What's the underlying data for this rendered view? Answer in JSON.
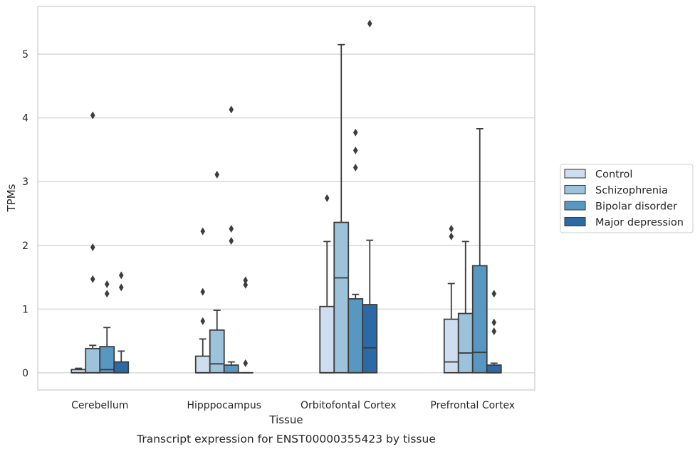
{
  "caption": "Transcript expression for ENST00000355423 by tissue",
  "colors": {
    "Control": "#cfdeee",
    "Schizophrenia": "#9cc3db",
    "Bipolar disorder": "#5997c3",
    "Major depression": "#2c6aa5",
    "edge": "#3c3c3c",
    "grid": "#cfcfcf",
    "frame": "#cccccc"
  },
  "chart_data": {
    "type": "box",
    "title": "",
    "xlabel": "Tissue",
    "ylabel": "TPMs",
    "ylim": [
      -0.27,
      5.75
    ],
    "yticks": [
      0,
      1,
      2,
      3,
      4,
      5
    ],
    "grid": true,
    "legend": {
      "placement": "right-outside",
      "entries": [
        "Control",
        "Schizophrenia",
        "Bipolar disorder",
        "Major depression"
      ]
    },
    "categories": [
      "Cerebellum",
      "Hipppocampus",
      "Orbitofontal Cortex",
      "Prefrontal Cortex"
    ],
    "series": [
      {
        "name": "Control",
        "boxes": [
          {
            "whislo": 0,
            "q1": 0,
            "med": 0,
            "q3": 0.05,
            "whishi": 0.07,
            "fliers": []
          },
          {
            "whislo": 0,
            "q1": 0,
            "med": 0,
            "q3": 0.26,
            "whishi": 0.53,
            "fliers": [
              0.81,
              1.27,
              2.22
            ]
          },
          {
            "whislo": 0,
            "q1": 0,
            "med": 0,
            "q3": 1.04,
            "whishi": 2.06,
            "fliers": [
              2.74
            ]
          },
          {
            "whislo": 0,
            "q1": 0,
            "med": 0.17,
            "q3": 0.84,
            "whishi": 1.4,
            "fliers": [
              2.14,
              2.26
            ]
          }
        ]
      },
      {
        "name": "Schizophrenia",
        "boxes": [
          {
            "whislo": 0,
            "q1": 0,
            "med": 0,
            "q3": 0.38,
            "whishi": 0.43,
            "fliers": [
              1.47,
              1.97,
              4.04
            ]
          },
          {
            "whislo": 0,
            "q1": 0,
            "med": 0.14,
            "q3": 0.67,
            "whishi": 0.98,
            "fliers": [
              3.11
            ]
          },
          {
            "whislo": 0,
            "q1": 0,
            "med": 1.49,
            "q3": 2.36,
            "whishi": 5.15,
            "fliers": []
          },
          {
            "whislo": 0,
            "q1": 0,
            "med": 0.31,
            "q3": 0.93,
            "whishi": 2.06,
            "fliers": []
          }
        ]
      },
      {
        "name": "Bipolar disorder",
        "boxes": [
          {
            "whislo": 0,
            "q1": 0,
            "med": 0.05,
            "q3": 0.41,
            "whishi": 0.71,
            "fliers": [
              1.24,
              1.39
            ]
          },
          {
            "whislo": 0,
            "q1": 0,
            "med": 0,
            "q3": 0.12,
            "whishi": 0.17,
            "fliers": [
              2.07,
              2.26,
              4.13
            ]
          },
          {
            "whislo": 0,
            "q1": 0,
            "med": 0,
            "q3": 1.16,
            "whishi": 1.23,
            "fliers": [
              3.22,
              3.49,
              3.77
            ]
          },
          {
            "whislo": 0,
            "q1": 0,
            "med": 0.32,
            "q3": 1.68,
            "whishi": 3.83,
            "fliers": []
          }
        ]
      },
      {
        "name": "Major depression",
        "boxes": [
          {
            "whislo": 0,
            "q1": 0,
            "med": 0,
            "q3": 0.17,
            "whishi": 0.34,
            "fliers": [
              1.34,
              1.53
            ]
          },
          {
            "whislo": 0,
            "q1": 0,
            "med": 0,
            "q3": 0,
            "whishi": 0,
            "fliers": [
              0.15,
              1.38,
              1.45
            ]
          },
          {
            "whislo": 0,
            "q1": 0,
            "med": 0.39,
            "q3": 1.07,
            "whishi": 2.08,
            "fliers": [
              5.48
            ]
          },
          {
            "whislo": 0,
            "q1": 0,
            "med": 0,
            "q3": 0.12,
            "whishi": 0.15,
            "fliers": [
              0.65,
              0.79,
              1.24
            ]
          }
        ]
      }
    ]
  }
}
